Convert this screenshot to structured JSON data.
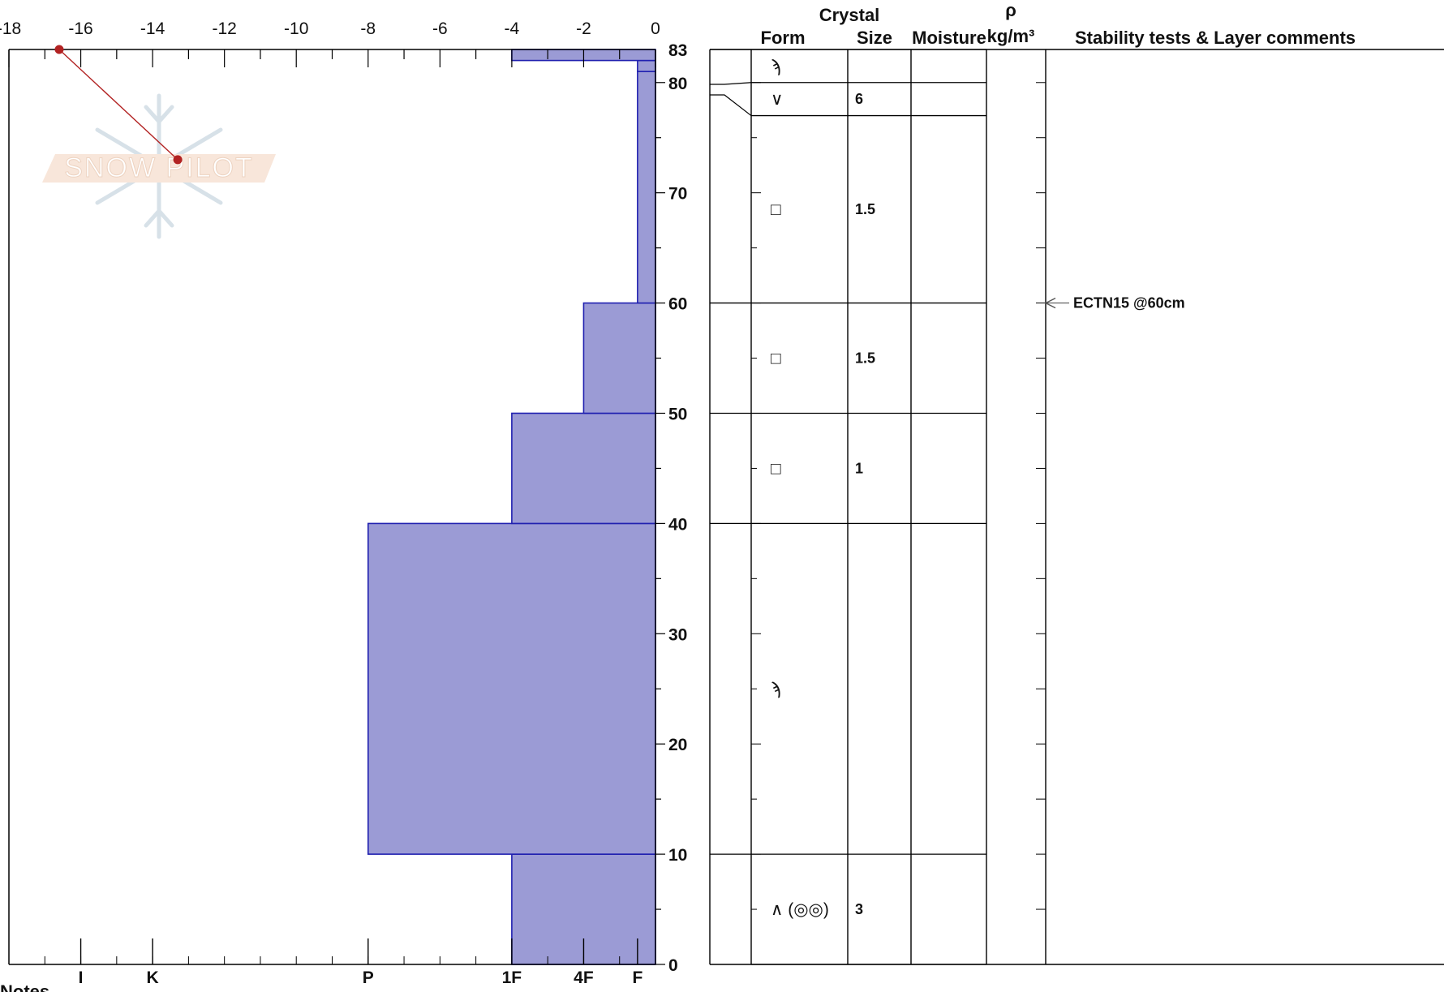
{
  "chart_data": {
    "type": "snow-profile",
    "temperature_axis": {
      "ticks": [
        -18,
        -16,
        -14,
        -12,
        -10,
        -8,
        -6,
        -4,
        -2,
        0
      ],
      "range": [
        -18,
        0
      ]
    },
    "hardness_axis": {
      "labels": [
        "I",
        "K",
        "P",
        "1F",
        "4F",
        "F"
      ],
      "values": [
        -16,
        -14,
        -8,
        -4,
        -2,
        -0.5
      ]
    },
    "depth_axis": {
      "labels": [
        "0",
        "10",
        "20",
        "30",
        "40",
        "50",
        "60",
        "70",
        "80",
        "83"
      ],
      "values": [
        0,
        10,
        20,
        30,
        40,
        50,
        60,
        70,
        80,
        83
      ],
      "range": [
        0,
        83
      ]
    },
    "temperature_profile": [
      {
        "depth": 83,
        "temp": -16.6
      },
      {
        "depth": 73,
        "temp": -13.3
      }
    ],
    "hardness_profile": [
      {
        "bottom": 0,
        "top": 10,
        "hardness": -4
      },
      {
        "bottom": 10,
        "top": 40,
        "hardness": -8
      },
      {
        "bottom": 40,
        "top": 50,
        "hardness": -4
      },
      {
        "bottom": 50,
        "top": 60,
        "hardness": -2
      },
      {
        "bottom": 60,
        "top": 81,
        "hardness": -0.5
      },
      {
        "bottom": 81,
        "top": 82,
        "hardness": -0.5
      },
      {
        "bottom": 82,
        "top": 83,
        "hardness": -4
      }
    ],
    "layers": [
      {
        "bottom": 80,
        "top": 83,
        "form": "ϡ",
        "size": ""
      },
      {
        "bottom": 77,
        "top": 80,
        "form": "∨",
        "size": "6"
      },
      {
        "bottom": 60,
        "top": 77,
        "form": "□",
        "size": "1.5"
      },
      {
        "bottom": 50,
        "top": 60,
        "form": "□",
        "size": "1.5"
      },
      {
        "bottom": 40,
        "top": 50,
        "form": "□",
        "size": "1"
      },
      {
        "bottom": 10,
        "top": 40,
        "form": "ϡ",
        "size": ""
      },
      {
        "bottom": 0,
        "top": 10,
        "form": "∧ (◎◎)",
        "size": "3"
      }
    ],
    "stability_tests": [
      {
        "depth": 60,
        "label": "ECTN15 @60cm"
      }
    ],
    "columns": {
      "crystal": "Crystal",
      "form": "Form",
      "size": "Size",
      "moisture": "Moisture",
      "density_symbol": "ρ",
      "density_unit": "kg/m³",
      "comments": "Stability tests & Layer comments"
    },
    "colors": {
      "hardness_fill": "#9b9bd5",
      "hardness_stroke": "#2020b0",
      "temperature": "#b22222"
    }
  },
  "watermark": {
    "text": "SNOW PILOT"
  },
  "footer": {
    "notes_label": "Notes"
  }
}
